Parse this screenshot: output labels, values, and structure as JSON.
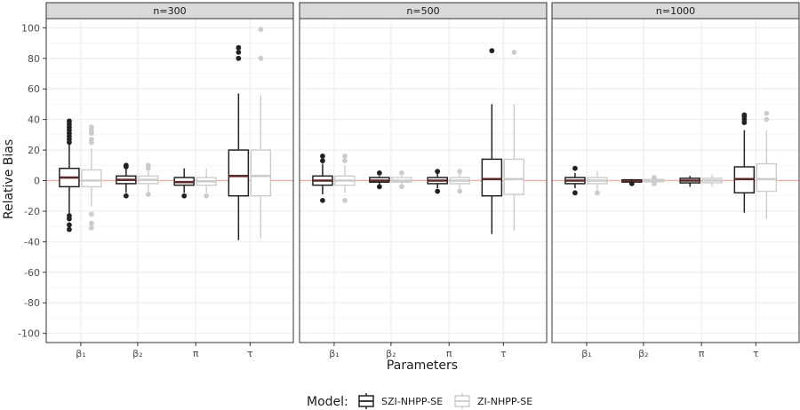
{
  "chart_data": {
    "type": "boxplot",
    "title": "",
    "xlabel": "Parameters",
    "ylabel": "Relative Bias",
    "ylim": [
      -106,
      106
    ],
    "yticks": [
      -100,
      -80,
      -60,
      -40,
      -20,
      0,
      20,
      40,
      60,
      80,
      100
    ],
    "ytick_labels": [
      "-100",
      "-80",
      "-60",
      "-40",
      "-20",
      "0",
      "20",
      "40",
      "60",
      "80",
      "100"
    ],
    "categories": [
      "β₁",
      "β₂",
      "π",
      "τ"
    ],
    "reference_line": {
      "y": 0,
      "color": "#f4a9a0"
    },
    "legend": {
      "title": "Model:",
      "position": "bottom",
      "entries": [
        {
          "name": "SZI-NHPP-SE",
          "color": "#222222"
        },
        {
          "name": "ZI-NHPP-SE",
          "color": "#cccccc"
        }
      ]
    },
    "panels": [
      {
        "label": "n=300",
        "series": [
          {
            "name": "SZI-NHPP-SE",
            "boxes": [
              {
                "min": -23,
                "q1": -4,
                "median": 2,
                "q3": 8,
                "max": 24,
                "outliers": [
                  39,
                  37,
                  35,
                  33,
                  31,
                  29,
                  27,
                  25,
                  -23,
                  -25,
                  -29,
                  -32
                ]
              },
              {
                "min": -8,
                "q1": -2,
                "median": 0.5,
                "q3": 3,
                "max": 8,
                "outliers": [
                  10,
                  9,
                  -10
                ]
              },
              {
                "min": -8,
                "q1": -3,
                "median": -1,
                "q3": 2,
                "max": 8,
                "outliers": [
                  -10
                ]
              },
              {
                "min": -39,
                "q1": -10,
                "median": 3,
                "q3": 20,
                "max": 57,
                "outliers": [
                  87,
                  84,
                  80
                ]
              }
            ]
          },
          {
            "name": "ZI-NHPP-SE",
            "boxes": [
              {
                "min": -17,
                "q1": -4,
                "median": 0,
                "q3": 7,
                "max": 21,
                "outliers": [
                  35,
                  33,
                  31,
                  27,
                  25,
                  -22,
                  -28,
                  -31
                ]
              },
              {
                "min": -7,
                "q1": -2,
                "median": 0.5,
                "q3": 3,
                "max": 7,
                "outliers": [
                  10,
                  8,
                  -9
                ]
              },
              {
                "min": -8,
                "q1": -3,
                "median": -0.5,
                "q3": 2,
                "max": 8,
                "outliers": [
                  -10
                ]
              },
              {
                "min": -38,
                "q1": -10,
                "median": 3,
                "q3": 20,
                "max": 56,
                "outliers": [
                  99,
                  80
                ]
              }
            ]
          }
        ]
      },
      {
        "label": "n=500",
        "series": [
          {
            "name": "SZI-NHPP-SE",
            "boxes": [
              {
                "min": -9,
                "q1": -3,
                "median": 0,
                "q3": 3,
                "max": 11,
                "outliers": [
                  16,
                  13,
                  -13
                ]
              },
              {
                "min": -3,
                "q1": -1,
                "median": 0,
                "q3": 2,
                "max": 3,
                "outliers": [
                  5,
                  -4
                ]
              },
              {
                "min": -5,
                "q1": -2,
                "median": 0,
                "q3": 2,
                "max": 5,
                "outliers": [
                  6,
                  -7
                ]
              },
              {
                "min": -35,
                "q1": -10,
                "median": 1,
                "q3": 14,
                "max": 50,
                "outliers": [
                  85
                ]
              }
            ]
          },
          {
            "name": "ZI-NHPP-SE",
            "boxes": [
              {
                "min": -8,
                "q1": -3,
                "median": 0,
                "q3": 3,
                "max": 10,
                "outliers": [
                  16,
                  13,
                  -13
                ]
              },
              {
                "min": -3,
                "q1": -1,
                "median": 0,
                "q3": 2,
                "max": 3,
                "outliers": [
                  5,
                  -4
                ]
              },
              {
                "min": -5,
                "q1": -2,
                "median": 0,
                "q3": 2,
                "max": 5,
                "outliers": [
                  6,
                  -7
                ]
              },
              {
                "min": -33,
                "q1": -9,
                "median": 1,
                "q3": 14,
                "max": 50,
                "outliers": [
                  84
                ]
              }
            ]
          }
        ]
      },
      {
        "label": "n=1000",
        "series": [
          {
            "name": "SZI-NHPP-SE",
            "boxes": [
              {
                "min": -5,
                "q1": -2,
                "median": 0,
                "q3": 2,
                "max": 5,
                "outliers": [
                  8,
                  -8
                ]
              },
              {
                "min": -2,
                "q1": -1,
                "median": -0.5,
                "q3": 0.5,
                "max": 1,
                "outliers": [
                  -2
                ]
              },
              {
                "min": -4,
                "q1": -1.5,
                "median": 0,
                "q3": 1.5,
                "max": 3,
                "outliers": []
              },
              {
                "min": -21,
                "q1": -8,
                "median": 1,
                "q3": 9,
                "max": 33,
                "outliers": [
                  43,
                  42,
                  40,
                  38
                ]
              }
            ]
          },
          {
            "name": "ZI-NHPP-SE",
            "boxes": [
              {
                "min": -6,
                "q1": -2,
                "median": 0,
                "q3": 2,
                "max": 6,
                "outliers": [
                  -8
                ]
              },
              {
                "min": -2,
                "q1": -0.8,
                "median": 0,
                "q3": 0.8,
                "max": 2,
                "outliers": [
                  2,
                  -2
                ]
              },
              {
                "min": -4,
                "q1": -1.5,
                "median": 0,
                "q3": 1.5,
                "max": 4,
                "outliers": []
              },
              {
                "min": -25,
                "q1": -7,
                "median": 1,
                "q3": 11,
                "max": 33,
                "outliers": [
                  44,
                  40
                ]
              }
            ]
          }
        ]
      }
    ]
  }
}
